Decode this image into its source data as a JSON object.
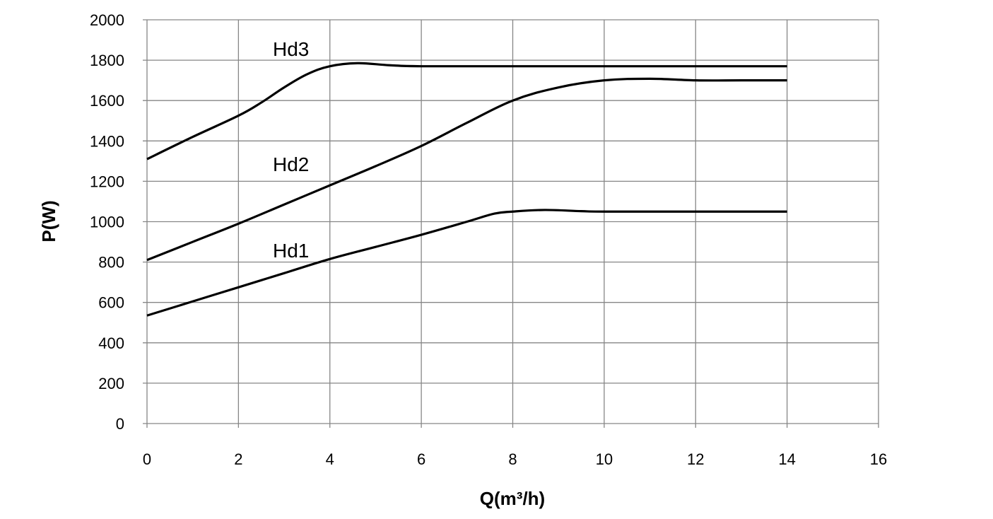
{
  "chart_data": {
    "type": "line",
    "title": "",
    "xlabel": "Q(m³/h)",
    "ylabel": "P(W)",
    "xlim": [
      0,
      16
    ],
    "ylim": [
      0,
      2000
    ],
    "x_ticks": [
      "0",
      "2",
      "4",
      "6",
      "8",
      "10",
      "12",
      "14",
      "16"
    ],
    "y_ticks": [
      "0",
      "200",
      "400",
      "600",
      "800",
      "1000",
      "1200",
      "1400",
      "1600",
      "1800",
      "2000"
    ],
    "grid": true,
    "series": [
      {
        "name": "Hd3",
        "x": [
          0,
          1,
          2,
          2.5,
          3,
          3.5,
          4,
          4.6,
          5.3,
          6,
          8,
          10,
          12,
          14
        ],
        "values": [
          1310,
          1420,
          1525,
          1590,
          1665,
          1730,
          1770,
          1785,
          1775,
          1770,
          1770,
          1770,
          1770,
          1770
        ]
      },
      {
        "name": "Hd2",
        "x": [
          0,
          1,
          2,
          3,
          4,
          5,
          6,
          7,
          8,
          9,
          10,
          11,
          12,
          13,
          14
        ],
        "values": [
          810,
          900,
          990,
          1085,
          1180,
          1275,
          1375,
          1490,
          1600,
          1665,
          1700,
          1708,
          1700,
          1700,
          1700
        ]
      },
      {
        "name": "Hd1",
        "x": [
          0,
          1,
          2,
          3,
          4,
          5,
          6,
          7,
          7.6,
          8,
          8.7,
          9.5,
          10,
          12,
          14
        ],
        "values": [
          535,
          605,
          675,
          745,
          815,
          875,
          935,
          1000,
          1040,
          1050,
          1058,
          1052,
          1050,
          1050,
          1050
        ]
      }
    ],
    "annotations": [
      {
        "text": "Hd3",
        "series": "Hd3"
      },
      {
        "text": "Hd2",
        "series": "Hd2"
      },
      {
        "text": "Hd1",
        "series": "Hd1"
      }
    ]
  }
}
